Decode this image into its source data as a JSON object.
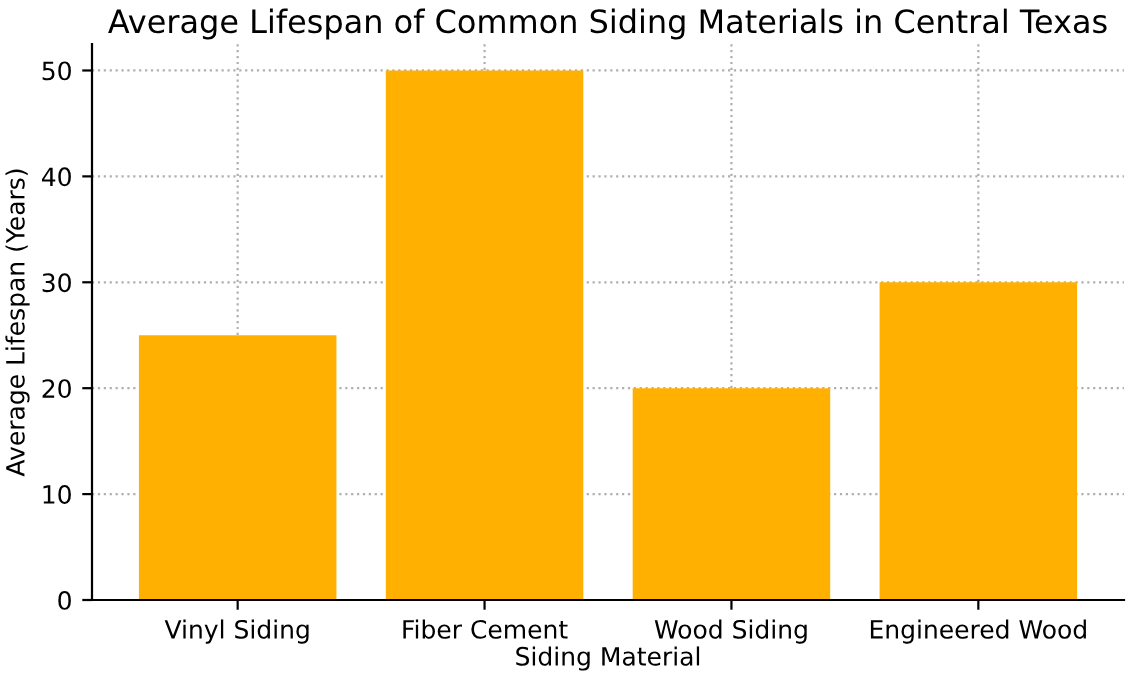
{
  "chart_data": {
    "type": "bar",
    "title": "Average Lifespan of Common Siding Materials in Central Texas",
    "xlabel": "Siding Material",
    "ylabel": "Average Lifespan (Years)",
    "categories": [
      "Vinyl Siding",
      "Fiber Cement",
      "Wood Siding",
      "Engineered Wood"
    ],
    "values": [
      25,
      50,
      20,
      30
    ],
    "color": "#ffb000",
    "ylim": [
      0,
      52.5
    ],
    "yticks": [
      0,
      10,
      20,
      30,
      40,
      50
    ],
    "grid": true
  }
}
